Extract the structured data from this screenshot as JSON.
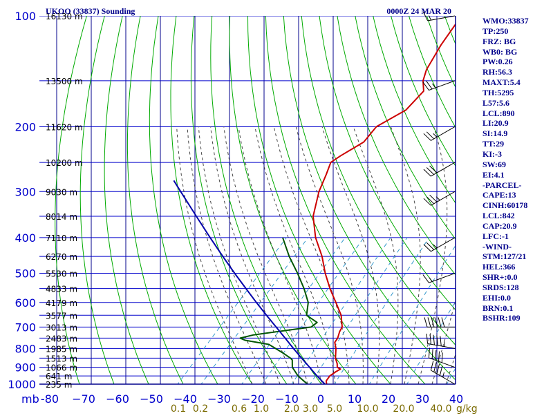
{
  "header": {
    "station_title": "UKOO (33837) Sounding",
    "valid_time": "0000Z 24 MAR 20"
  },
  "indices": [
    "WMO:33837",
    "TP:250",
    "FRZ: BG",
    "WB0: BG",
    "PW:0.26",
    "RH:56.3",
    "MAXT:5.4",
    "TH:5295",
    "L57:5.6",
    "LCL:890",
    "LI:20.9",
    "SI:14.9",
    "TT:29",
    "KI:-3",
    "SW:69",
    "EI:4.1",
    "-PARCEL-",
    "CAPE:13",
    "CINH:60178",
    "LCL:842",
    "CAP:20.9",
    "LFC:-1",
    "-WIND-",
    "STM:127/21",
    "HEL:366",
    "SHR+:0.0",
    "SRDS:128",
    "EHI:0.0",
    "BRN:0.1",
    "BSHR:109"
  ],
  "colors": {
    "frame": "#00008b",
    "isobar": "#0000cc",
    "isotherm": "#0000cc",
    "dry_adiabat": "#00aa00",
    "moist_adiabat": "#444444",
    "mixing_ratio": "#3399cc",
    "temperature": "#cc0000",
    "dewpoint": "#005500",
    "parcel": "#0000aa",
    "wind_barb": "#000000",
    "mixing_ratio_label": "#7a6a00",
    "index_text": "#00008b"
  },
  "chart_data": {
    "type": "skew-t log-p sounding",
    "x_axis_unit_label": "mb",
    "xlim": [
      -80,
      0
    ],
    "ylim_pressure_hpa": [
      1000,
      100
    ],
    "grid": true,
    "pressure_levels": [
      {
        "p": 100,
        "label": "100",
        "height_label": "16130 m"
      },
      {
        "p": 150,
        "label": "",
        "height_label": "13500 m"
      },
      {
        "p": 200,
        "label": "200",
        "height_label": "11620 m"
      },
      {
        "p": 250,
        "label": "",
        "height_label": "10200 m"
      },
      {
        "p": 300,
        "label": "300",
        "height_label": "9030 m"
      },
      {
        "p": 350,
        "label": "",
        "height_label": "8014 m"
      },
      {
        "p": 400,
        "label": "400",
        "height_label": "7110 m"
      },
      {
        "p": 450,
        "label": "",
        "height_label": "6270 m"
      },
      {
        "p": 500,
        "label": "500",
        "height_label": "5530 m"
      },
      {
        "p": 550,
        "label": "",
        "height_label": "4833 m"
      },
      {
        "p": 600,
        "label": "600",
        "height_label": "4179 m"
      },
      {
        "p": 650,
        "label": "",
        "height_label": "3577 m"
      },
      {
        "p": 700,
        "label": "700",
        "height_label": "3013 m"
      },
      {
        "p": 750,
        "label": "",
        "height_label": "2483 m"
      },
      {
        "p": 800,
        "label": "800",
        "height_label": "1985 m"
      },
      {
        "p": 850,
        "label": "",
        "height_label": "1513 m"
      },
      {
        "p": 900,
        "label": "900",
        "height_label": "1066 m"
      },
      {
        "p": 950,
        "label": "",
        "height_label": "641 m"
      },
      {
        "p": 1000,
        "label": "1000",
        "height_label": "235 m"
      }
    ],
    "temperature_ticks": [
      {
        "t": -80,
        "label": "-80"
      },
      {
        "t": -70,
        "label": "−70"
      },
      {
        "t": -60,
        "label": "−60"
      },
      {
        "t": -50,
        "label": "−50"
      },
      {
        "t": -40,
        "label": "−40"
      },
      {
        "t": -30,
        "label": "−30"
      },
      {
        "t": -20,
        "label": "−20"
      },
      {
        "t": -10,
        "label": "−10"
      },
      {
        "t": 0,
        "label": "0"
      },
      {
        "t": 10,
        "label": "10"
      },
      {
        "t": 20,
        "label": "20"
      },
      {
        "t": 30,
        "label": "30"
      },
      {
        "t": 40,
        "label": "40"
      }
    ],
    "mixing_ratio_labels": [
      {
        "w": 0.1,
        "label": "0.1"
      },
      {
        "w": 0.2,
        "label": "0.2"
      },
      {
        "w": 0.6,
        "label": "0.6"
      },
      {
        "w": 1.0,
        "label": "1.0"
      },
      {
        "w": 2.0,
        "label": "2.0"
      },
      {
        "w": 3.0,
        "label": "3.0"
      },
      {
        "w": 5.0,
        "label": "5.0"
      },
      {
        "w": 10.0,
        "label": "10.0"
      },
      {
        "w": 20.0,
        "label": "20.0"
      },
      {
        "w": 40.0,
        "label": "40.0"
      }
    ],
    "mixing_ratio_unit": "g/kg",
    "mixing_ratio_unit_label": "g/kg",
    "series": [
      {
        "name": "temperature",
        "points": [
          [
            1000,
            1.5
          ],
          [
            980,
            0.5
          ],
          [
            950,
            0.2
          ],
          [
            925,
            0.8
          ],
          [
            910,
            1.4
          ],
          [
            900,
            0.0
          ],
          [
            880,
            -1.0
          ],
          [
            850,
            -3.0
          ],
          [
            800,
            -5.5
          ],
          [
            770,
            -7.5
          ],
          [
            750,
            -7.8
          ],
          [
            720,
            -9.0
          ],
          [
            700,
            -9.5
          ],
          [
            650,
            -13.0
          ],
          [
            600,
            -18.0
          ],
          [
            550,
            -23.5
          ],
          [
            500,
            -29.0
          ],
          [
            450,
            -34.5
          ],
          [
            400,
            -41.5
          ],
          [
            350,
            -48.0
          ],
          [
            300,
            -53.0
          ],
          [
            270,
            -55.5
          ],
          [
            250,
            -57.5
          ],
          [
            240,
            -56.5
          ],
          [
            220,
            -53.5
          ],
          [
            200,
            -54.0
          ],
          [
            180,
            -50.0
          ],
          [
            160,
            -50.0
          ],
          [
            150,
            -53.0
          ],
          [
            140,
            -55.0
          ],
          [
            120,
            -57.5
          ],
          [
            100,
            -59.5
          ]
        ]
      },
      {
        "name": "dewpoint",
        "points": [
          [
            1000,
            -4.0
          ],
          [
            980,
            -6.0
          ],
          [
            950,
            -9.0
          ],
          [
            900,
            -13.0
          ],
          [
            860,
            -15.0
          ],
          [
            850,
            -16.0
          ],
          [
            820,
            -20.0
          ],
          [
            780,
            -26.0
          ],
          [
            760,
            -34.0
          ],
          [
            750,
            -36.0
          ],
          [
            735,
            -33.0
          ],
          [
            720,
            -27.0
          ],
          [
            700,
            -18.5
          ],
          [
            680,
            -18.0
          ],
          [
            650,
            -23.0
          ],
          [
            600,
            -26.0
          ],
          [
            550,
            -31.0
          ],
          [
            500,
            -37.0
          ],
          [
            450,
            -44.0
          ],
          [
            400,
            -51.0
          ]
        ]
      },
      {
        "name": "parcel",
        "points": [
          [
            1000,
            1.0
          ],
          [
            950,
            -3.5
          ],
          [
            900,
            -8.0
          ],
          [
            850,
            -12.8
          ],
          [
            800,
            -17.8
          ],
          [
            750,
            -23.0
          ],
          [
            700,
            -28.6
          ],
          [
            650,
            -34.6
          ],
          [
            600,
            -41.0
          ],
          [
            550,
            -47.8
          ],
          [
            500,
            -55.2
          ],
          [
            450,
            -63.2
          ],
          [
            400,
            -72.0
          ],
          [
            350,
            -81.8
          ],
          [
            300,
            -93.0
          ],
          [
            280,
            -98.0
          ]
        ]
      }
    ],
    "wind_barbs": [
      {
        "p": 100,
        "dir": 280,
        "kt": 15
      },
      {
        "p": 150,
        "dir": 290,
        "kt": 25
      },
      {
        "p": 200,
        "dir": 300,
        "kt": 25
      },
      {
        "p": 250,
        "dir": 300,
        "kt": 30
      },
      {
        "p": 300,
        "dir": 300,
        "kt": 35
      },
      {
        "p": 400,
        "dir": 300,
        "kt": 25
      },
      {
        "p": 500,
        "dir": 290,
        "kt": 15
      },
      {
        "p": 700,
        "dir": 270,
        "kt": 60
      },
      {
        "p": 800,
        "dir": 260,
        "kt": 55
      },
      {
        "p": 900,
        "dir": 250,
        "kt": 50
      },
      {
        "p": 1000,
        "dir": 240,
        "kt": 45
      }
    ]
  }
}
